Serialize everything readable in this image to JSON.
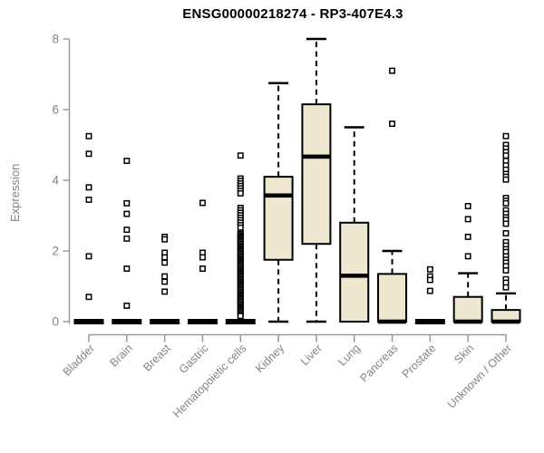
{
  "window": {
    "background": "#ffffff"
  },
  "chart_data": {
    "type": "boxplot",
    "title": "ENSG00000218274 - RP3-407E4.3",
    "xlabel": "",
    "ylabel": "Expression",
    "ylim": [
      0,
      8
    ],
    "yticks": [
      0,
      2,
      4,
      6,
      8
    ],
    "grid": false,
    "legend": "none",
    "outlier_marker": "open-square",
    "colors": {
      "box_fill": "#ede8cf",
      "box_stroke": "#000000",
      "median": "#000000",
      "whisker": "#000000",
      "axis_line": "#9a9a9a",
      "tick_label": "#848484",
      "title": "#000000",
      "outlier_fill": "#ffffff"
    },
    "categories": [
      "Bladder",
      "Brain",
      "Breast",
      "Gastric",
      "Hematopoietic cells",
      "Kidney",
      "Liver",
      "Lung",
      "Pancreas",
      "Prostate",
      "Skin",
      "Unknown / Other"
    ],
    "boxes": [
      {
        "category": "Bladder",
        "q1": 0,
        "median": 0,
        "q3": 0,
        "whisker_low": 0,
        "whisker_high": 0,
        "outliers": [
          5.25,
          4.75,
          3.8,
          3.45,
          1.85,
          0.7
        ]
      },
      {
        "category": "Brain",
        "q1": 0,
        "median": 0,
        "q3": 0,
        "whisker_low": 0,
        "whisker_high": 0,
        "outliers": [
          4.55,
          3.35,
          3.05,
          2.6,
          2.35,
          1.5,
          0.45
        ]
      },
      {
        "category": "Breast",
        "q1": 0,
        "median": 0,
        "q3": 0,
        "whisker_low": 0,
        "whisker_high": 0,
        "outliers": [
          2.4,
          2.33,
          1.95,
          1.82,
          1.67,
          1.28,
          1.13,
          0.85
        ]
      },
      {
        "category": "Gastric",
        "q1": 0,
        "median": 0,
        "q3": 0,
        "whisker_low": 0,
        "whisker_high": 0,
        "outliers": [
          3.36,
          1.95,
          1.82,
          1.5
        ]
      },
      {
        "category": "Hematopoietic cells",
        "q1": 0,
        "median": 0,
        "q3": 0,
        "whisker_low": 0,
        "whisker_high": 0,
        "outliers": [
          4.7,
          4.05,
          3.98,
          3.91,
          3.84,
          3.77,
          3.7,
          3.63,
          3.22,
          3.15,
          3.08,
          3.01,
          2.94,
          2.87,
          2.8,
          2.73,
          2.66,
          2.52,
          2.48,
          2.44,
          2.4,
          2.36,
          2.32,
          2.28,
          2.24,
          2.2,
          2.16,
          2.12,
          2.08,
          2.04,
          2.0,
          1.96,
          1.92,
          1.88,
          1.84,
          1.8,
          1.76,
          1.72,
          1.68,
          1.64,
          1.6,
          1.56,
          1.52,
          1.48,
          1.44,
          1.4,
          1.36,
          1.32,
          1.28,
          1.24,
          1.2,
          1.16,
          1.12,
          1.08,
          1.04,
          1.0,
          0.96,
          0.92,
          0.88,
          0.84,
          0.8,
          0.76,
          0.72,
          0.68,
          0.64,
          0.6,
          0.56,
          0.52,
          0.48,
          0.44,
          0.4,
          0.36,
          0.32,
          0.28,
          0.24,
          0.2,
          0.16
        ]
      },
      {
        "category": "Kidney",
        "q1": 1.75,
        "median": 3.57,
        "q3": 4.1,
        "whisker_low": 0,
        "whisker_high": 6.75,
        "outliers": []
      },
      {
        "category": "Liver",
        "q1": 2.2,
        "median": 4.67,
        "q3": 6.15,
        "whisker_low": 0,
        "whisker_high": 8.0,
        "outliers": []
      },
      {
        "category": "Lung",
        "q1": 0,
        "median": 1.3,
        "q3": 2.8,
        "whisker_low": 0,
        "whisker_high": 5.5,
        "outliers": []
      },
      {
        "category": "Pancreas",
        "q1": 0,
        "median": 0,
        "q3": 1.35,
        "whisker_low": 0,
        "whisker_high": 2.0,
        "outliers": [
          7.1,
          5.6
        ]
      },
      {
        "category": "Prostate",
        "q1": 0,
        "median": 0,
        "q3": 0,
        "whisker_low": 0,
        "whisker_high": 0,
        "outliers": [
          1.48,
          1.28,
          1.18,
          0.87
        ]
      },
      {
        "category": "Skin",
        "q1": 0,
        "median": 0,
        "q3": 0.7,
        "whisker_low": 0,
        "whisker_high": 1.37,
        "outliers": [
          3.27,
          2.9,
          2.4,
          1.85
        ]
      },
      {
        "category": "Unknown / Other",
        "q1": 0,
        "median": 0,
        "q3": 0.33,
        "whisker_low": 0,
        "whisker_high": 0.8,
        "outliers": [
          5.25,
          5.0,
          4.9,
          4.8,
          4.7,
          4.55,
          4.42,
          4.3,
          4.18,
          4.1,
          4.02,
          3.5,
          3.42,
          3.35,
          3.15,
          3.05,
          2.95,
          2.88,
          2.77,
          2.5,
          2.25,
          2.15,
          2.05,
          1.97,
          1.85,
          1.75,
          1.67,
          1.57,
          1.45,
          1.2,
          1.1,
          0.97
        ]
      }
    ]
  }
}
